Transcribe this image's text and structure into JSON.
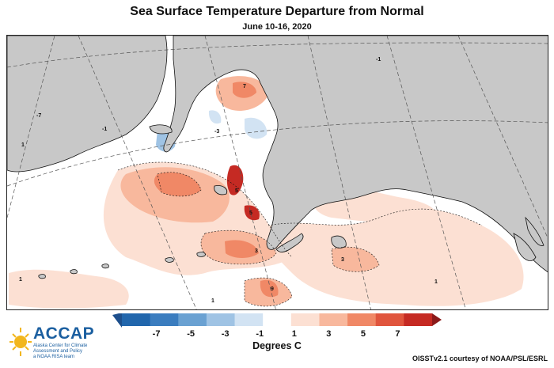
{
  "title": "Sea Surface Temperature Departure from Normal",
  "subtitle": "June 10-16, 2020",
  "legend": {
    "title": "Degrees C",
    "ticks": [
      "-7",
      "-5",
      "-3",
      "-1",
      "1",
      "3",
      "5",
      "7"
    ],
    "colors": [
      "#2166ac",
      "#3b7dbf",
      "#6aa1d2",
      "#9fc3e4",
      "#d2e3f3",
      "#ffffff",
      "#fce0d3",
      "#f8b89d",
      "#f08866",
      "#e0553d",
      "#c52a23"
    ]
  },
  "contour_labels": [
    "-1",
    "-3",
    "1",
    "3",
    "5",
    "7",
    "9",
    "-7"
  ],
  "logo": {
    "name": "ACCAP",
    "tagline": "Alaska Center for Climate Assessment and Policy",
    "affiliation": "a NOAA RISA team"
  },
  "credit": "OISSTv2.1 courtesy of NOAA/PSL/ESRL",
  "colors": {
    "land": "#c8c8c8",
    "grid": "#555555"
  }
}
